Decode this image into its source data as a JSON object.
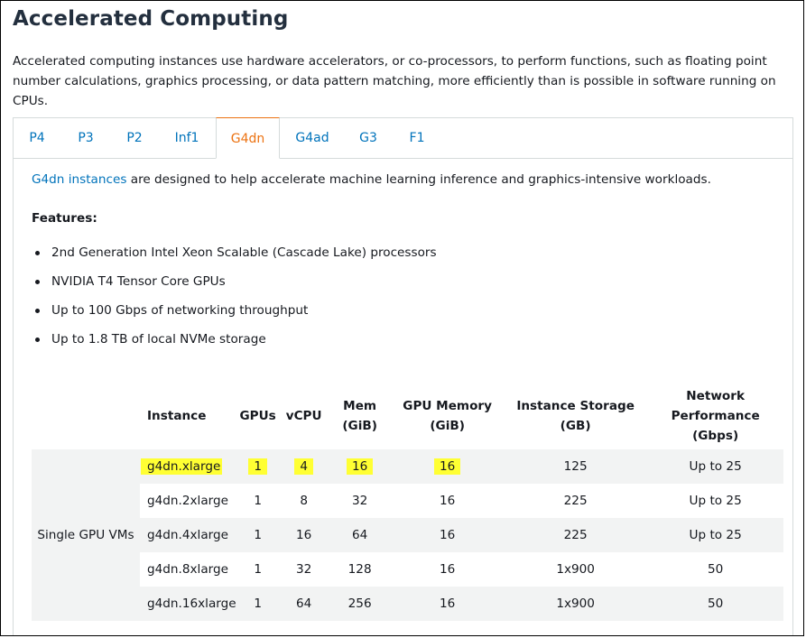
{
  "page": {
    "title": "Accelerated Computing",
    "intro": "Accelerated computing instances use hardware accelerators, or co-processors, to perform functions, such as floating point number calculations, graphics processing, or data pattern matching, more efficiently than is possible in software running on CPUs."
  },
  "tabs": [
    {
      "label": "P4",
      "active": false
    },
    {
      "label": "P3",
      "active": false
    },
    {
      "label": "P2",
      "active": false
    },
    {
      "label": "Inf1",
      "active": false
    },
    {
      "label": "G4dn",
      "active": true
    },
    {
      "label": "G4ad",
      "active": false
    },
    {
      "label": "G3",
      "active": false
    },
    {
      "label": "F1",
      "active": false
    }
  ],
  "panel": {
    "link_text": "G4dn instances",
    "desc_rest": " are designed to help accelerate machine learning inference and graphics-intensive workloads.",
    "features_title": "Features:",
    "features": [
      "2nd Generation Intel Xeon Scalable (Cascade Lake) processors",
      "NVIDIA T4 Tensor Core GPUs",
      "Up to 100 Gbps of networking throughput",
      "Up to 1.8 TB of local NVMe storage"
    ]
  },
  "table": {
    "headers": {
      "instance": "Instance",
      "gpus": "GPUs",
      "vcpu": "vCPU",
      "mem_line1": "Mem",
      "mem_line2": "(GiB)",
      "gpumem_line1": "GPU Memory",
      "gpumem_line2": "(GiB)",
      "storage": "Instance Storage (GB)",
      "net_line1": "Network",
      "net_line2": "Performance",
      "net_line3": "(Gbps)"
    },
    "group_label": "Single GPU VMs",
    "rows": [
      {
        "instance": "g4dn.xlarge",
        "gpus": "1",
        "vcpu": "4",
        "mem": "16",
        "gpu_mem": "16",
        "storage": "125",
        "network": "Up to 25"
      },
      {
        "instance": "g4dn.2xlarge",
        "gpus": "1",
        "vcpu": "8",
        "mem": "32",
        "gpu_mem": "16",
        "storage": "225",
        "network": "Up to 25"
      },
      {
        "instance": "g4dn.4xlarge",
        "gpus": "1",
        "vcpu": "16",
        "mem": "64",
        "gpu_mem": "16",
        "storage": "225",
        "network": "Up to 25"
      },
      {
        "instance": "g4dn.8xlarge",
        "gpus": "1",
        "vcpu": "32",
        "mem": "128",
        "gpu_mem": "16",
        "storage": "1x900",
        "network": "50"
      },
      {
        "instance": "g4dn.16xlarge",
        "gpus": "1",
        "vcpu": "64",
        "mem": "256",
        "gpu_mem": "16",
        "storage": "1x900",
        "network": "50"
      }
    ]
  },
  "colors": {
    "link": "#0073bb",
    "active_tab": "#ec7211",
    "highlight": "#ffff33",
    "stripe": "#f2f3f3"
  }
}
